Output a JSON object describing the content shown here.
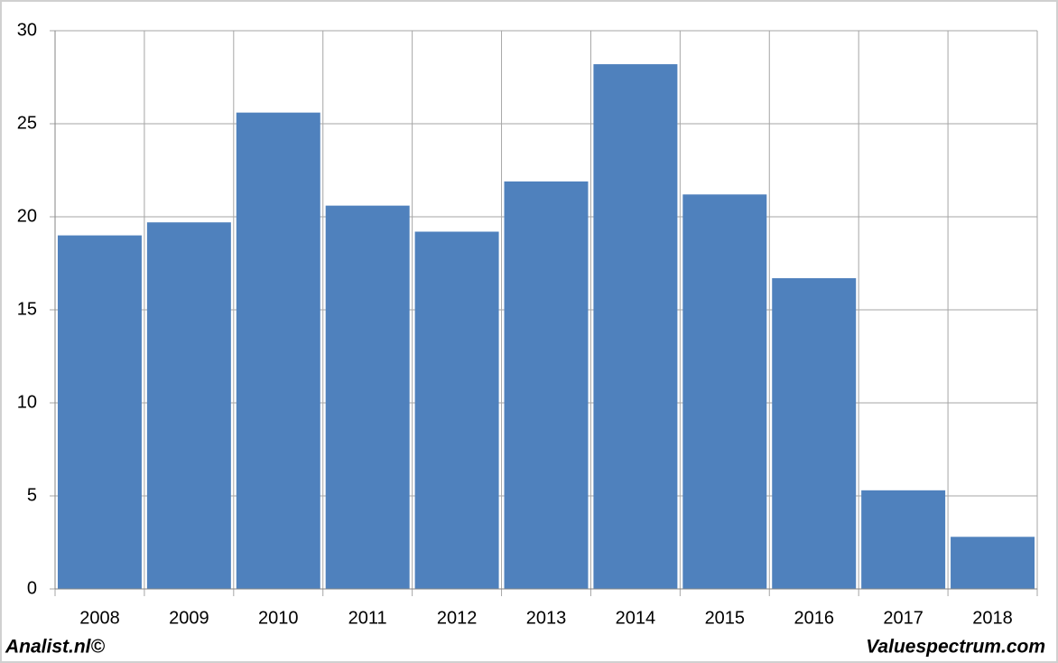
{
  "chart_data": {
    "type": "bar",
    "categories": [
      "2008",
      "2009",
      "2010",
      "2011",
      "2012",
      "2013",
      "2014",
      "2015",
      "2016",
      "2017",
      "2018"
    ],
    "values": [
      19.0,
      19.7,
      25.6,
      20.6,
      19.2,
      21.9,
      28.2,
      21.2,
      16.7,
      5.3,
      2.8
    ],
    "color": "#4f81bd",
    "ylim": [
      0,
      30
    ],
    "yticks": [
      0,
      5,
      10,
      15,
      20,
      25,
      30
    ],
    "grid": true,
    "source": "Analist.nl©",
    "credit": "Valuespectrum.com"
  }
}
